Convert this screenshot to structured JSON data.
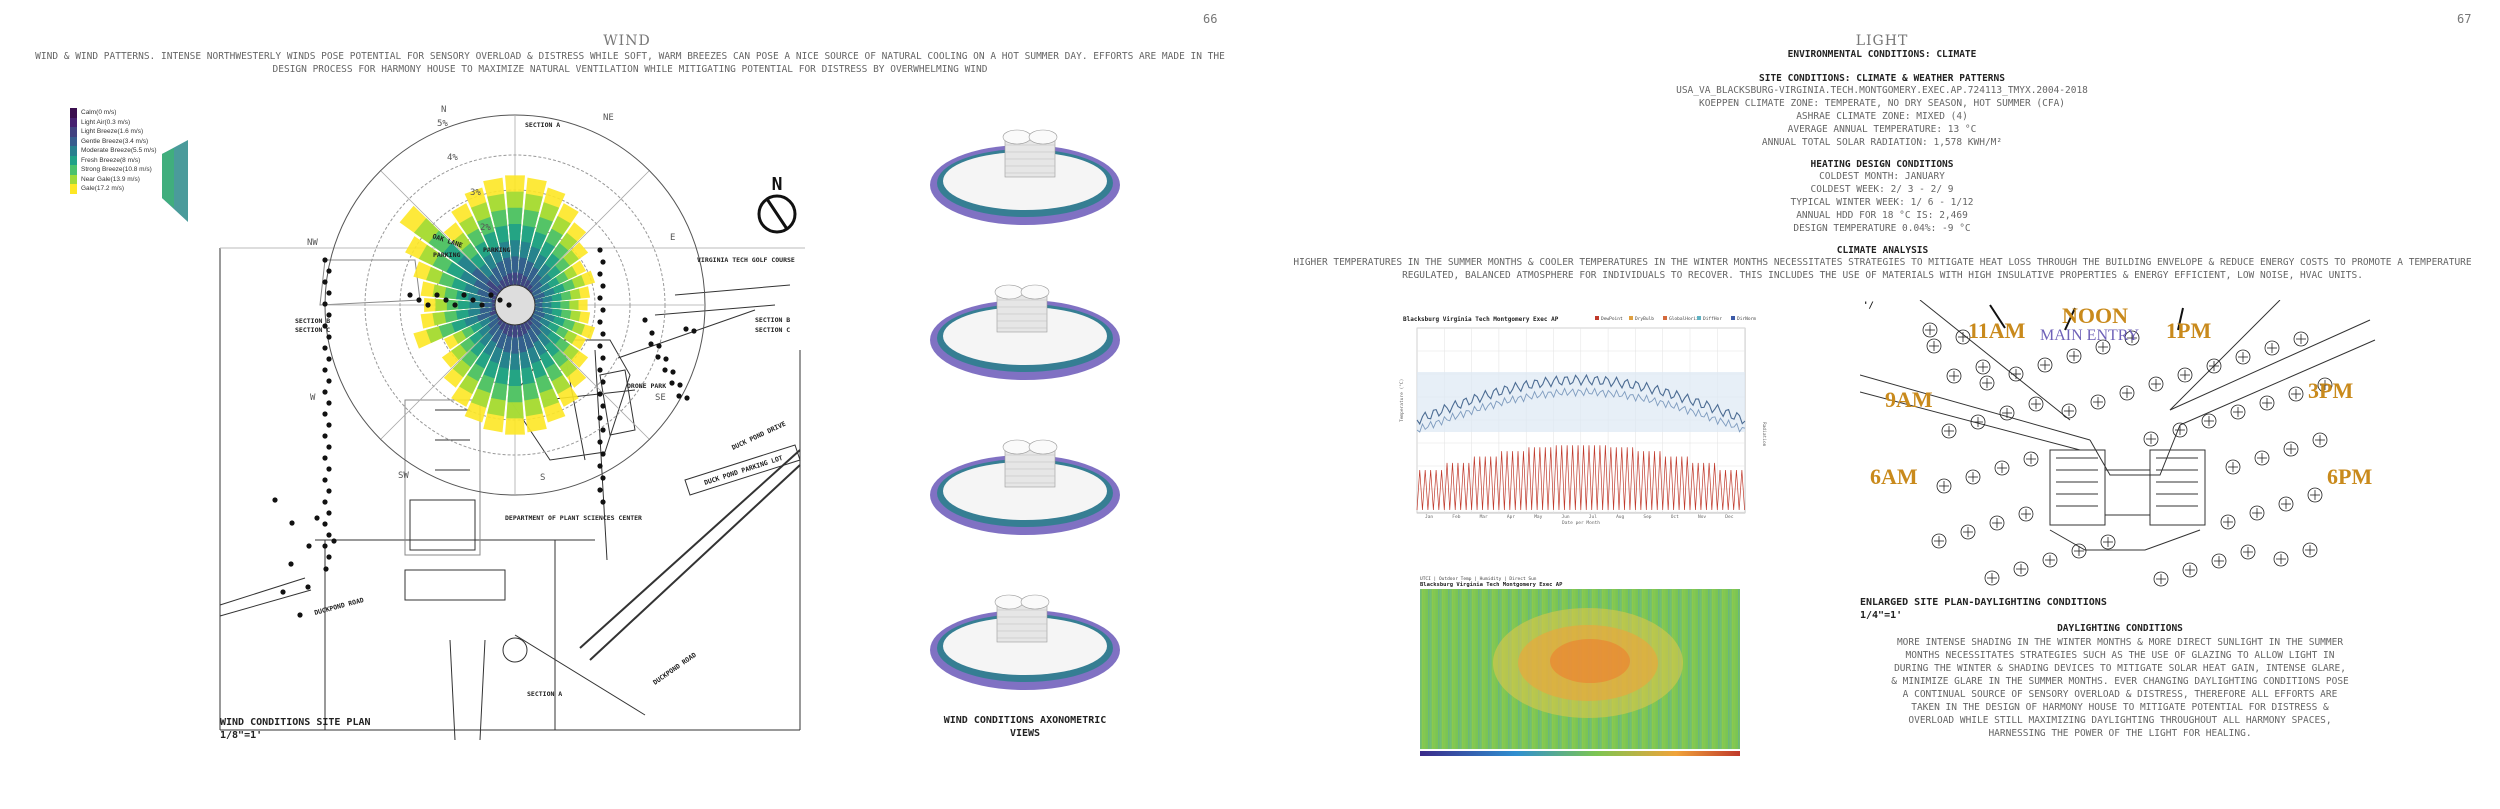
{
  "left_page": {
    "page_number": "66",
    "title": "WIND",
    "intro": "WIND & WIND PATTERNS. INTENSE NORTHWESTERLY WINDS POSE POTENTIAL FOR SENSORY OVERLOAD & DISTRESS WHILE SOFT, WARM BREEZES CAN POSE A NICE SOURCE OF NATURAL COOLING ON A HOT SUMMER DAY. EFFORTS ARE MADE IN THE DESIGN PROCESS FOR HARMONY HOUSE TO MAXIMIZE NATURAL VENTILATION WHILE MITIGATING POTENTIAL FOR DISTRESS BY OVERWHELMING WIND",
    "legend": [
      {
        "label": "Calm(0 m/s)",
        "color": "#3b0f4f"
      },
      {
        "label": "Light Air(0.3 m/s)",
        "color": "#46206f"
      },
      {
        "label": "Light Breeze(1.6 m/s)",
        "color": "#41417f"
      },
      {
        "label": "Gentle Breeze(3.4 m/s)",
        "color": "#365c8d"
      },
      {
        "label": "Moderate Breeze(5.5 m/s)",
        "color": "#277f8e"
      },
      {
        "label": "Fresh Breeze(8 m/s)",
        "color": "#1fa187"
      },
      {
        "label": "Strong Breeze(10.8 m/s)",
        "color": "#4ac16d"
      },
      {
        "label": "Near Gale(13.9 m/s)",
        "color": "#a0da39"
      },
      {
        "label": "Gale(17.2 m/s)",
        "color": "#fde725"
      }
    ],
    "compass": [
      "N",
      "NE",
      "E",
      "SE",
      "S",
      "SW",
      "W",
      "NW"
    ],
    "rings": [
      "5%",
      "4%",
      "3%",
      "2%"
    ],
    "north_arrow": "N",
    "site_labels": {
      "oak_lane": "OAK LANE",
      "parking_a": "PARKING",
      "parking_b": "PARKING",
      "golf": "VIRGINIA TECH GOLF COURSE",
      "section_a_top": "SECTION A",
      "section_a_bottom": "SECTION A",
      "section_b_left": "SECTION B",
      "section_c_left": "SECTION C",
      "section_b_right": "SECTION B",
      "section_c_right": "SECTION C",
      "drone_park": "DRONE PARK",
      "duck_pond_drive": "DUCK POND DRIVE",
      "duck_pond_lot": "DUCK POND PARKING LOT",
      "sciences": "DEPARTMENT OF PLANT SCIENCES CENTER",
      "rd_left": "DUCKPOND ROAD",
      "rd_right": "DUCKPOND ROAD"
    },
    "site_plan_caption": "WIND CONDITIONS SITE PLAN",
    "site_plan_scale": "1/8\"=1'",
    "axon_caption": "WIND CONDITIONS AXONOMETRIC VIEWS"
  },
  "right_page": {
    "page_number": "67",
    "title": "LIGHT",
    "subtitle": "ENVIRONMENTAL CONDITIONS: CLIMATE",
    "site_conditions_heading": "SITE CONDITIONS: CLIMATE & WEATHER PATTERNS",
    "site_conditions_lines": [
      "USA_VA_BLACKSBURG-VIRGINIA.TECH.MONTGOMERY.EXEC.AP.724113_TMYX.2004-2018",
      "KOEPPEN CLIMATE ZONE: TEMPERATE, NO DRY SEASON, HOT SUMMER (CFA)",
      "ASHRAE CLIMATE ZONE: MIXED (4)",
      "AVERAGE ANNUAL TEMPERATURE: 13 °C",
      "ANNUAL TOTAL SOLAR RADIATION: 1,578 KWH/M²"
    ],
    "heating_heading": "HEATING DESIGN CONDITIONS",
    "heating_lines": [
      "COLDEST MONTH: JANUARY",
      "COLDEST WEEK: 2/ 3 - 2/ 9",
      "TYPICAL WINTER WEEK: 1/ 6 - 1/12",
      "ANNUAL HDD FOR 18 °C IS: 2,469",
      "DESIGN TEMPERATURE 0.04%: -9 °C"
    ],
    "climate_heading": "CLIMATE ANALYSIS",
    "climate_text": "HIGHER TEMPERATURES IN THE SUMMER MONTHS & COOLER TEMPERATURES IN THE WINTER MONTHS NECESSITATES STRATEGIES TO MITIGATE HEAT LOSS THROUGH THE BUILDING ENVELOPE & REDUCE ENERGY COSTS TO PROMOTE A TEMPERATURE REGULATED, BALANCED ATMOSPHERE FOR INDIVIDUALS TO RECOVER. THIS INCLUDES THE USE OF MATERIALS WITH HIGH INSULATIVE PROPERTIES & ENERGY EFFICIENT, LOW NOISE, HVAC UNITS.",
    "chart_title": "Blacksburg Virginia Tech Montgomery Exec AP",
    "chart_legend": [
      "DewPoint",
      "DryBulb",
      "GlobalHoriz",
      "DiffHor",
      "DirNorm"
    ],
    "chart_months": [
      "Jan",
      "Feb",
      "Mar",
      "Apr",
      "May",
      "Jun",
      "Jul",
      "Aug",
      "Sep",
      "Oct",
      "Nov",
      "Dec"
    ],
    "chart_xlabel": "Date per Month",
    "chart_ylabel": "Temperature (°C)",
    "chart_y2label": "Radiation",
    "heatmap_header": "UTCI | Outdoor Temp | Humidity | Direct Sun",
    "heatmap_title": "Blacksburg Virginia Tech Montgomery Exec AP",
    "sun_labels": [
      "6AM",
      "9AM",
      "11AM",
      "NOON",
      "1PM",
      "3PM",
      "6PM"
    ],
    "main_entry": "MAIN ENTRY",
    "site_plan_caption": "ENLARGED SITE PLAN-DAYLIGHTING CONDITIONS",
    "site_plan_scale": "1/4\"=1'",
    "daylight_heading": "DAYLIGHTING CONDITIONS",
    "daylight_text": "MORE INTENSE SHADING IN THE WINTER MONTHS & MORE DIRECT SUNLIGHT IN THE SUMMER MONTHS NECESSITATES STRATEGIES SUCH AS THE USE OF GLAZING TO ALLOW LIGHT IN DURING THE WINTER & SHADING DEVICES TO MITIGATE SOLAR HEAT GAIN, INTENSE GLARE, & MINIMIZE GLARE IN THE SUMMER MONTHS. EVER CHANGING DAYLIGHTING CONDITIONS POSE A CONTINUAL SOURCE OF SENSORY OVERLOAD & DISTRESS, THEREFORE ALL EFFORTS ARE TAKEN IN THE DESIGN OF HARMONY HOUSE TO MITIGATE POTENTIAL FOR DISTRESS & OVERLOAD WHILE STILL MAXIMIZING DAYLIGHTING THROUGHOUT ALL HARMONY SPACES, HARNESSING THE POWER OF THE LIGHT FOR HEALING."
  }
}
